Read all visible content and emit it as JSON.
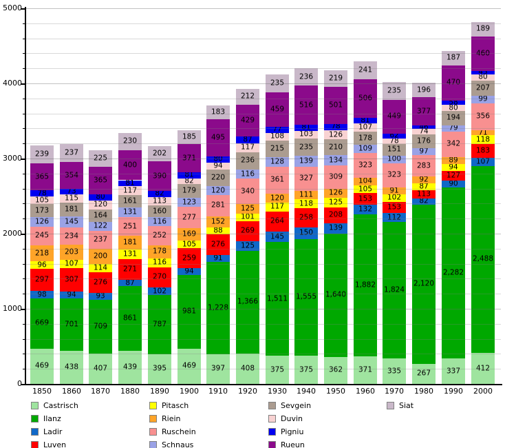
{
  "chart_data": {
    "type": "bar",
    "stacked": true,
    "title": "",
    "xlabel": "",
    "ylabel": "",
    "ylim": [
      0,
      5000
    ],
    "ytick_interval_major": 1000,
    "grid_interval": 200,
    "grid": true,
    "legend_position": "bottom",
    "categories": [
      "1850",
      "1860",
      "1870",
      "1880",
      "1890",
      "1900",
      "1910",
      "1920",
      "1930",
      "1940",
      "1950",
      "1960",
      "1970",
      "1980",
      "1990",
      "2000"
    ],
    "series": [
      {
        "name": "Castrisch",
        "color": "#9FE49F",
        "values": [
          469,
          438,
          407,
          439,
          395,
          469,
          397,
          408,
          375,
          375,
          362,
          371,
          335,
          267,
          337,
          412
        ]
      },
      {
        "name": "Ilanz",
        "color": "#00A800",
        "values": [
          669,
          701,
          709,
          861,
          787,
          981,
          1228,
          1366,
          1511,
          1555,
          1640,
          1882,
          1824,
          2120,
          2282,
          2488
        ]
      },
      {
        "name": "Ladir",
        "color": "#1068C8",
        "values": [
          98,
          94,
          93,
          87,
          102,
          94,
          91,
          125,
          145,
          150,
          139,
          132,
          112,
          82,
          90,
          107
        ]
      },
      {
        "name": "Luven",
        "color": "#FF0000",
        "values": [
          297,
          307,
          276,
          271,
          270,
          259,
          276,
          269,
          264,
          258,
          208,
          153,
          153,
          113,
          127,
          183
        ]
      },
      {
        "name": "Pitasch",
        "color": "#FFFF00",
        "values": [
          96,
          107,
          114,
          131,
          116,
          105,
          88,
          101,
          117,
          118,
          125,
          105,
          102,
          87,
          94,
          118
        ]
      },
      {
        "name": "Riein",
        "color": "#FFA428",
        "values": [
          218,
          203,
          200,
          181,
          178,
          169,
          152,
          125,
          120,
          111,
          126,
          104,
          91,
          92,
          89,
          71
        ]
      },
      {
        "name": "Ruschein",
        "color": "#F89090",
        "values": [
          245,
          234,
          237,
          251,
          252,
          277,
          281,
          340,
          361,
          327,
          309,
          323,
          323,
          283,
          342,
          356
        ]
      },
      {
        "name": "Schnaus",
        "color": "#9AA2E6",
        "values": [
          126,
          145,
          122,
          131,
          116,
          123,
          120,
          116,
          128,
          139,
          134,
          109,
          100,
          97,
          79,
          99
        ]
      },
      {
        "name": "Sevgein",
        "color": "#AB9C90",
        "values": [
          173,
          181,
          164,
          161,
          160,
          179,
          220,
          236,
          215,
          235,
          210,
          178,
          151,
          176,
          194,
          207
        ]
      },
      {
        "name": "Duvin",
        "color": "#F8D2D2",
        "values": [
          105,
          115,
          120,
          117,
          113,
          82,
          94,
          117,
          108,
          103,
          126,
          107,
          78,
          74,
          80,
          80
        ]
      },
      {
        "name": "Pigniu",
        "color": "#0000F0",
        "values": [
          78,
          73,
          80,
          81,
          82,
          81,
          80,
          87,
          77,
          81,
          78,
          81,
          62,
          46,
          58,
          45
        ]
      },
      {
        "name": "Rueun",
        "color": "#8B0A8B",
        "values": [
          365,
          354,
          365,
          400,
          390,
          371,
          495,
          429,
          459,
          516,
          501,
          506,
          449,
          377,
          470,
          460
        ]
      },
      {
        "name": "Siat",
        "color": "#C9B8C9",
        "values": [
          239,
          237,
          225,
          230,
          202,
          185,
          183,
          212,
          235,
          236,
          219,
          241,
          235,
          196,
          187,
          189
        ]
      }
    ]
  },
  "axes": {
    "y_tick_labels": [
      "0",
      "1000",
      "2000",
      "3000",
      "4000",
      "5000"
    ],
    "x_tick_labels": [
      "1850",
      "1860",
      "1870",
      "1880",
      "1890",
      "1900",
      "1910",
      "1920",
      "1930",
      "1940",
      "1950",
      "1960",
      "1970",
      "1980",
      "1990",
      "2000"
    ]
  },
  "legend": {
    "columns": [
      [
        "Castrisch",
        "Ilanz",
        "Ladir",
        "Luven"
      ],
      [
        "Pitasch",
        "Riein",
        "Ruschein",
        "Schnaus"
      ],
      [
        "Sevgein",
        "Duvin",
        "Pigniu",
        "Rueun"
      ],
      [
        "Siat"
      ]
    ]
  }
}
